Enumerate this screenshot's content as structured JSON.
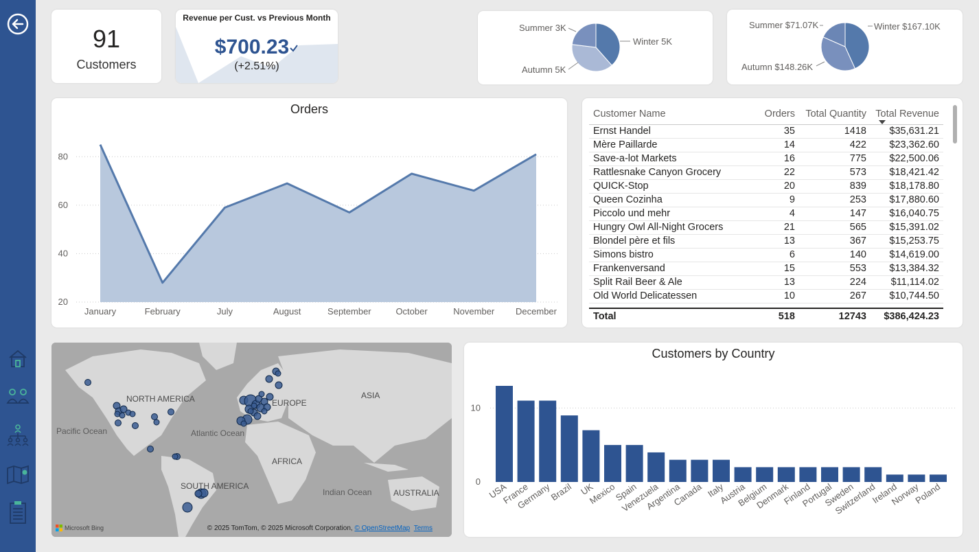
{
  "sidebar": {
    "items": [
      {
        "icon": "back-arrow-icon"
      },
      {
        "icon": "home-icon"
      },
      {
        "icon": "customers-icon"
      },
      {
        "icon": "hierarchy-icon"
      },
      {
        "icon": "map-icon"
      },
      {
        "icon": "clipboard-icon"
      }
    ]
  },
  "kpi": {
    "value": "91",
    "label": "Customers"
  },
  "revenue_card": {
    "title": "Revenue per Cust. vs Previous Month",
    "value": "$700.23",
    "change": "(+2.51%)"
  },
  "pie1": {
    "labels": {
      "summer": "Summer 3K",
      "winter": "Winter 5K",
      "autumn": "Autumn 5K"
    },
    "chart_data": {
      "type": "pie",
      "categories": [
        "Winter",
        "Autumn",
        "Summer"
      ],
      "values": [
        5,
        5,
        3
      ]
    }
  },
  "pie2": {
    "labels": {
      "summer": "Summer $71.07K",
      "winter": "Winter $167.10K",
      "autumn": "Autumn $148.26K"
    },
    "chart_data": {
      "type": "pie",
      "categories": [
        "Winter",
        "Autumn",
        "Summer"
      ],
      "values": [
        167.1,
        148.26,
        71.07
      ]
    }
  },
  "chart_data": {
    "type": "area",
    "title": "Orders",
    "categories": [
      "January",
      "February",
      "July",
      "August",
      "September",
      "October",
      "November",
      "December"
    ],
    "values": [
      85,
      28,
      59,
      69,
      57,
      73,
      66,
      81
    ],
    "yticks": [
      20,
      40,
      60,
      80
    ],
    "ylim": [
      20,
      90
    ],
    "grid": true,
    "colors": {
      "fill": "#b8c8dd",
      "line": "#5479ab"
    }
  },
  "customers_table": {
    "headers": [
      "Customer Name",
      "Orders",
      "Total Quantity",
      "Total Revenue"
    ],
    "rows": [
      [
        "Ernst Handel",
        "35",
        "1418",
        "$35,631.21"
      ],
      [
        "Mère Paillarde",
        "14",
        "422",
        "$23,362.60"
      ],
      [
        "Save-a-lot Markets",
        "16",
        "775",
        "$22,500.06"
      ],
      [
        "Rattlesnake Canyon Grocery",
        "22",
        "573",
        "$18,421.42"
      ],
      [
        "QUICK-Stop",
        "20",
        "839",
        "$18,178.80"
      ],
      [
        "Queen Cozinha",
        "9",
        "253",
        "$17,880.60"
      ],
      [
        "Piccolo und mehr",
        "4",
        "147",
        "$16,040.75"
      ],
      [
        "Hungry Owl All-Night Grocers",
        "21",
        "565",
        "$15,391.02"
      ],
      [
        "Blondel père et fils",
        "13",
        "367",
        "$15,253.75"
      ],
      [
        "Simons bistro",
        "6",
        "140",
        "$14,619.00"
      ],
      [
        "Frankenversand",
        "15",
        "553",
        "$13,384.32"
      ],
      [
        "Split Rail Beer & Ale",
        "13",
        "224",
        "$11,114.02"
      ],
      [
        "Old World Delicatessen",
        "10",
        "267",
        "$10,744.50"
      ]
    ],
    "total": [
      "Total",
      "518",
      "12743",
      "$386,424.23"
    ]
  },
  "map": {
    "continents": [
      "NORTH AMERICA",
      "EUROPE",
      "ASIA",
      "AFRICA",
      "SOUTH AMERICA",
      "AUSTRALIA"
    ],
    "oceans": [
      "Pacific Ocean",
      "Atlantic Ocean",
      "Indian Ocean"
    ],
    "bing": "Microsoft Bing",
    "copyright": "© 2025 TomTom, © 2025 Microsoft Corporation,",
    "osm": "© OpenStreetMap",
    "terms": "Terms"
  },
  "country_chart": {
    "title": "Customers by Country",
    "chart_data": {
      "type": "bar",
      "categories": [
        "USA",
        "France",
        "Germany",
        "Brazil",
        "UK",
        "Mexico",
        "Spain",
        "Venezuela",
        "Argentina",
        "Canada",
        "Italy",
        "Austria",
        "Belgium",
        "Denmark",
        "Finland",
        "Portugal",
        "Sweden",
        "Switzerland",
        "Ireland",
        "Norway",
        "Poland"
      ],
      "values": [
        13,
        11,
        11,
        9,
        7,
        5,
        5,
        4,
        3,
        3,
        3,
        2,
        2,
        2,
        2,
        2,
        2,
        2,
        1,
        1,
        1
      ],
      "yticks": [
        0,
        10
      ],
      "ylim": [
        0,
        13
      ],
      "color": "#2e5491"
    }
  }
}
